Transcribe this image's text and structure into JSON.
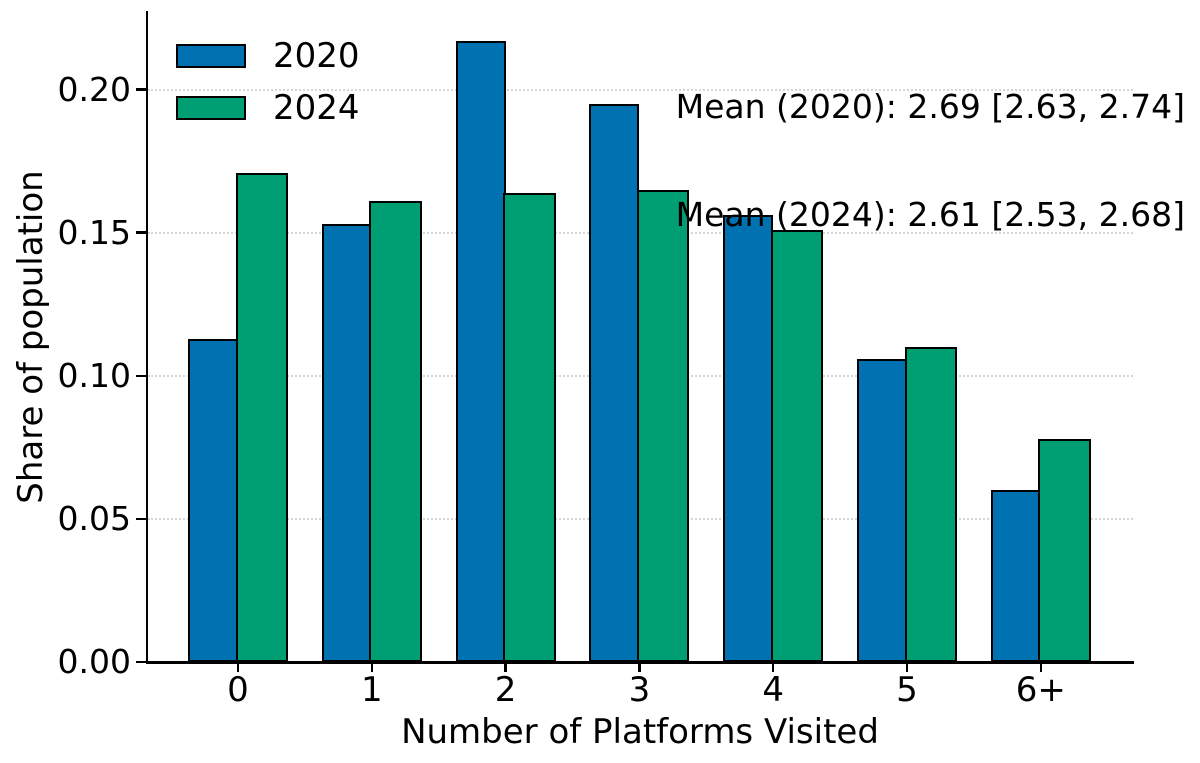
{
  "chart_data": {
    "type": "bar",
    "title": "",
    "xlabel": "Number of Platforms Visited",
    "ylabel": "Share of population",
    "categories": [
      "0",
      "1",
      "2",
      "3",
      "4",
      "5",
      "6+"
    ],
    "series": [
      {
        "name": "2020",
        "color": "#0072B2",
        "values": [
          0.113,
          0.153,
          0.217,
          0.195,
          0.156,
          0.106,
          0.06
        ]
      },
      {
        "name": "2024",
        "color": "#009E73",
        "values": [
          0.171,
          0.161,
          0.164,
          0.165,
          0.151,
          0.11,
          0.078
        ]
      }
    ],
    "ylim": [
      0,
      0.227
    ],
    "yticks": [
      0,
      0.05,
      0.1,
      0.15,
      0.2
    ],
    "ytick_labels": [
      "0.00",
      "0.05",
      "0.10",
      "0.15",
      "0.20"
    ],
    "grid": "horizontal-dotted",
    "gridline_color": "#d6d6d6",
    "bar_edge_color": "#000000",
    "legend_position": "upper-left",
    "annotation_lines": [
      "Mean (2020): 2.69 [2.63, 2.74]",
      "Mean (2024): 2.61 [2.53, 2.68]"
    ]
  }
}
